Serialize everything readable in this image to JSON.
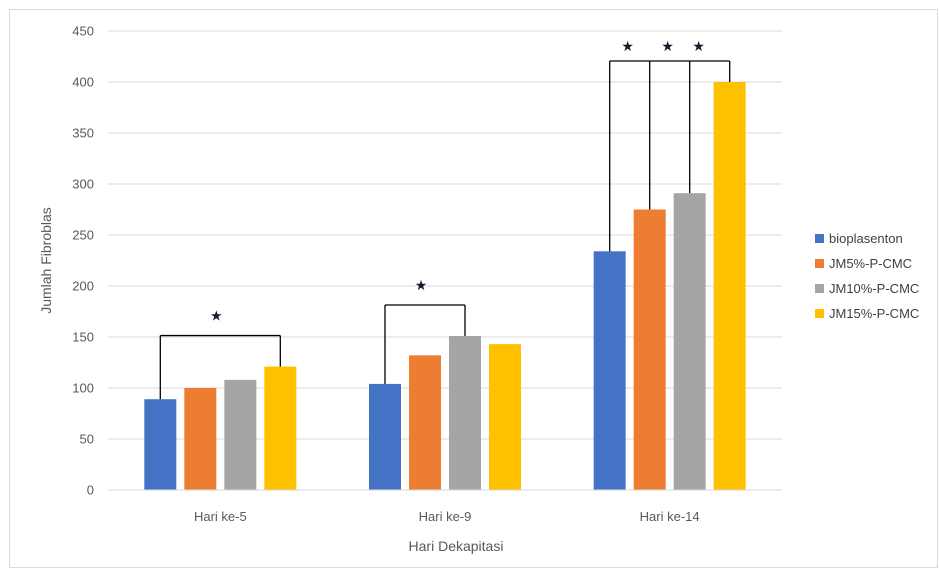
{
  "chart_data": {
    "type": "bar",
    "categories": [
      "Hari ke-5",
      "Hari ke-9",
      "Hari ke-14"
    ],
    "series": [
      {
        "name": "bioplasenton",
        "color": "#4472c4",
        "values": [
          89,
          104,
          234
        ]
      },
      {
        "name": "JM5%-P-CMC",
        "color": "#ed7d31",
        "values": [
          100,
          132,
          275
        ]
      },
      {
        "name": "JM10%-P-CMC",
        "color": "#a5a5a5",
        "values": [
          108,
          151,
          291
        ]
      },
      {
        "name": "JM15%-P-CMC",
        "color": "#ffc000",
        "values": [
          121,
          143,
          400
        ]
      }
    ],
    "xlabel": "Hari Dekapitasi",
    "ylabel": "Jumlah Fibroblas",
    "ylim": [
      0,
      450
    ],
    "yticks": [
      0,
      50,
      100,
      150,
      200,
      250,
      300,
      350,
      400,
      450
    ],
    "grid": true,
    "legend": "right",
    "annotations": [
      {
        "category": "Hari ke-5",
        "marker": "★",
        "compares": [
          "bioplasenton",
          "JM15%-P-CMC"
        ]
      },
      {
        "category": "Hari ke-9",
        "marker": "★",
        "compares": [
          "bioplasenton",
          "JM10%-P-CMC"
        ]
      },
      {
        "category": "Hari ke-14",
        "marker": "★",
        "compares": [
          "bioplasenton",
          "JM15%-P-CMC"
        ]
      },
      {
        "category": "Hari ke-14",
        "marker": "★",
        "compares": [
          "JM5%-P-CMC",
          "JM15%-P-CMC"
        ]
      },
      {
        "category": "Hari ke-14",
        "marker": "★",
        "compares": [
          "JM10%-P-CMC",
          "JM15%-P-CMC"
        ]
      }
    ]
  }
}
